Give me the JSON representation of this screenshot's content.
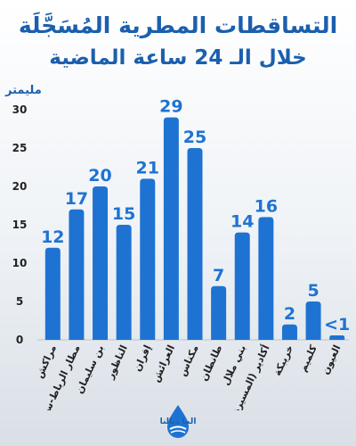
{
  "header": {
    "title_line1": "التساقطات المطرية المُسَجَّلَة",
    "title_line2": "خلال الـ 24 ساعة الماضية"
  },
  "brand": {
    "name": "الما ديالنا"
  },
  "colors": {
    "bar": "#1e73d2",
    "title": "#1b5fae",
    "text": "#222222"
  },
  "chart_data": {
    "type": "bar",
    "ylabel": "مليمتر",
    "ylim": [
      0,
      30
    ],
    "yticks": [
      0,
      5,
      10,
      15,
      20,
      25,
      30
    ],
    "grid": false,
    "categories": [
      "مراكش",
      "مطار الرباط-سلا",
      "بن سليمان",
      "الناظور",
      "إفران",
      "العرائش",
      "مكناس",
      "طانطان",
      "بني ملال",
      "أكادير (المسيرة)",
      "خريبكة",
      "كلميم",
      "العيون"
    ],
    "values": [
      12,
      17,
      20,
      15,
      21,
      29,
      25,
      7,
      14,
      16,
      2,
      5,
      0.5
    ],
    "data_labels": [
      "12",
      "17",
      "20",
      "15",
      "21",
      "29",
      "25",
      "7",
      "14",
      "16",
      "2",
      "5",
      "<1"
    ]
  }
}
